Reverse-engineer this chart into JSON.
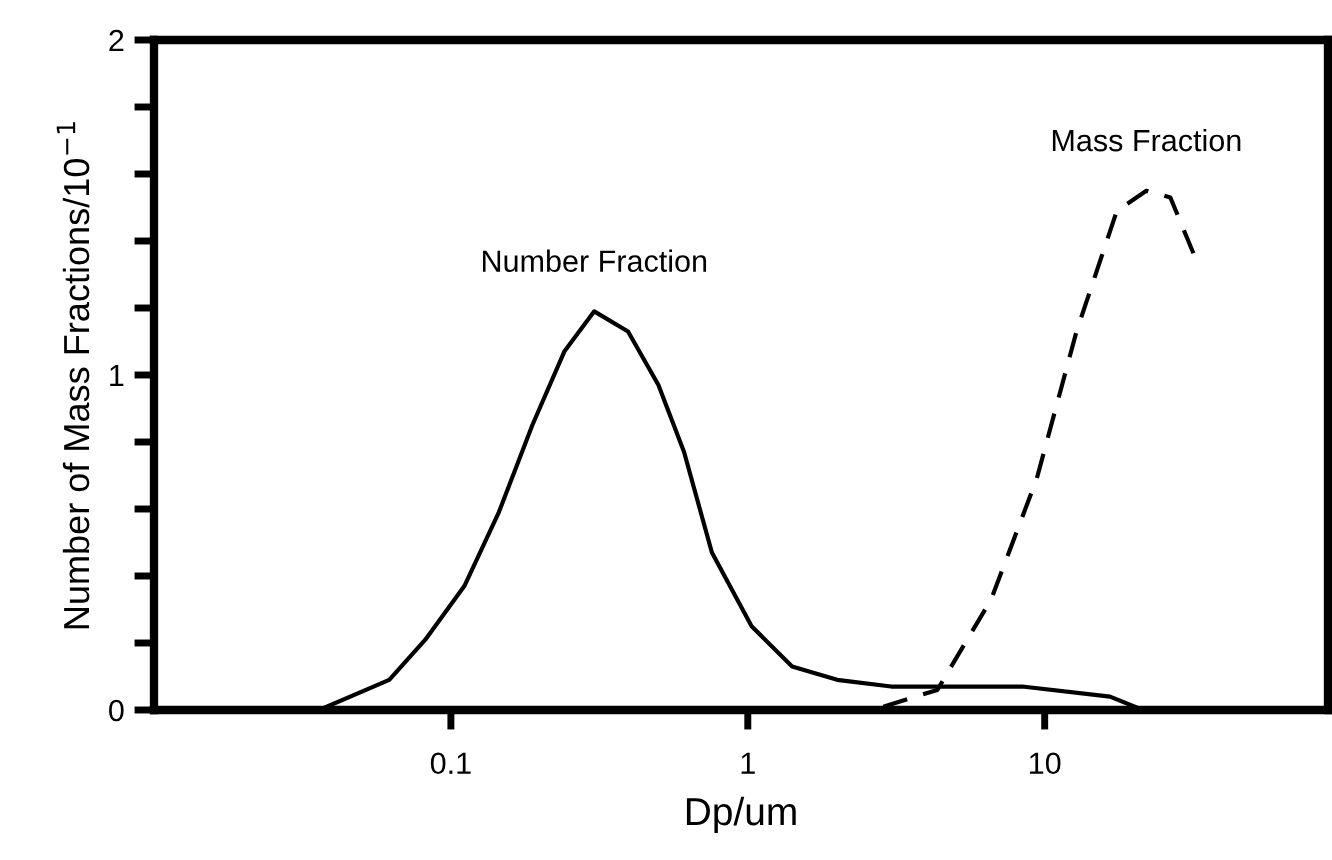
{
  "chart_data": {
    "type": "line",
    "xlabel": "Dp/um",
    "ylabel": "Number of Mass Fractions/10$^{−1}$",
    "log": "x",
    "grid": false,
    "legend": false,
    "marker": "none",
    "xlim": [
      0.01,
      90
    ],
    "xticks": [
      0.1,
      1,
      10
    ],
    "ylim": [
      0,
      2
    ],
    "yticks": [
      0,
      {
        "value": 0.2,
        "label": null
      },
      {
        "value": 0.4,
        "label": null
      },
      {
        "value": 0.6,
        "label": null
      },
      {
        "value": 0.8,
        "label": null
      },
      1,
      {
        "value": 1.2,
        "label": null
      },
      {
        "value": 1.4,
        "label": null
      },
      {
        "value": 1.6,
        "label": null
      },
      {
        "value": 1.8,
        "label": null
      },
      2
    ],
    "series": [
      {
        "name": "Number Fraction",
        "color": "#000000",
        "line_style": "solid",
        "x": [
          0.036,
          0.062,
          0.082,
          0.111,
          0.145,
          0.188,
          0.241,
          0.304,
          0.395,
          0.5,
          0.61,
          0.757,
          1.03,
          1.41,
          2.0,
          3.04,
          8.4,
          16.6,
          21.4
        ],
        "values": [
          0,
          0.09,
          0.21,
          0.37,
          0.59,
          0.85,
          1.07,
          1.19,
          1.13,
          0.97,
          0.77,
          0.47,
          0.25,
          0.13,
          0.09,
          0.07,
          0.07,
          0.04,
          0
        ]
      },
      {
        "name": "Mass Fraction",
        "color": "#000000",
        "line_style": "dashed",
        "x": [
          2.86,
          4.35,
          6.6,
          9.4,
          12.8,
          17.5,
          22,
          26.5,
          31.8
        ],
        "values": [
          0.01,
          0.06,
          0.33,
          0.69,
          1.13,
          1.49,
          1.55,
          1.53,
          1.36
        ]
      }
    ]
  }
}
